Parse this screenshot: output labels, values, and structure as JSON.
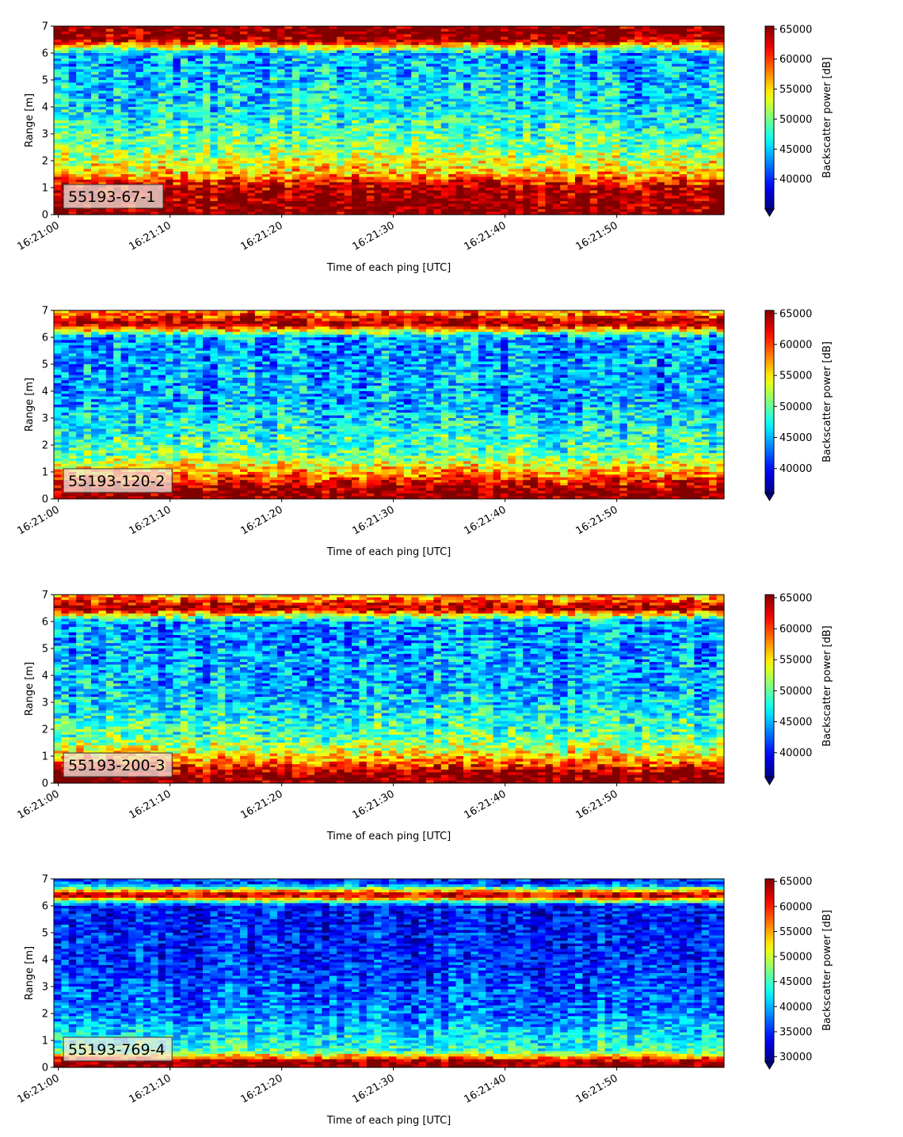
{
  "chart_data": [
    {
      "type": "heatmap",
      "label": "55193-67-1",
      "xlabel": "Time of each ping [UTC]",
      "ylabel": "Range [m]",
      "colorbar_label": "Backscatter power [dB]",
      "xlim": [
        "16:20:59.6",
        "16:21:59.6"
      ],
      "ylim": [
        0,
        7
      ],
      "x_ticks": [
        "16:21:00",
        "16:21:10",
        "16:21:20",
        "16:21:30",
        "16:21:40",
        "16:21:50"
      ],
      "y_ticks": [
        0,
        1,
        2,
        3,
        4,
        5,
        6,
        7
      ],
      "colorbar_range": [
        35000,
        65500
      ],
      "colorbar_ticks": [
        40000,
        45000,
        50000,
        55000,
        60000,
        65000
      ],
      "colorbar_extend": "min",
      "colormap": "jet",
      "profile_approx": [
        {
          "range_m": 0.2,
          "level": 65500
        },
        {
          "range_m": 1.0,
          "level": 64000
        },
        {
          "range_m": 1.6,
          "level": 55000
        },
        {
          "range_m": 2.5,
          "level": 50000
        },
        {
          "range_m": 4.0,
          "level": 46000
        },
        {
          "range_m": 6.0,
          "level": 44000
        },
        {
          "range_m": 6.5,
          "level": 65500
        }
      ]
    },
    {
      "type": "heatmap",
      "label": "55193-120-2",
      "xlabel": "Time of each ping [UTC]",
      "ylabel": "Range [m]",
      "colorbar_label": "Backscatter power [dB]",
      "xlim": [
        "16:20:59.6",
        "16:21:59.6"
      ],
      "ylim": [
        0,
        7
      ],
      "x_ticks": [
        "16:21:00",
        "16:21:10",
        "16:21:20",
        "16:21:30",
        "16:21:40",
        "16:21:50"
      ],
      "y_ticks": [
        0,
        1,
        2,
        3,
        4,
        5,
        6,
        7
      ],
      "colorbar_range": [
        36000,
        65500
      ],
      "colorbar_ticks": [
        40000,
        45000,
        50000,
        55000,
        60000,
        65000
      ],
      "colorbar_extend": "min",
      "colormap": "jet",
      "profile_approx": [
        {
          "range_m": 0.3,
          "level": 65500
        },
        {
          "range_m": 0.9,
          "level": 58000
        },
        {
          "range_m": 1.6,
          "level": 50000
        },
        {
          "range_m": 3.5,
          "level": 45000
        },
        {
          "range_m": 6.0,
          "level": 44000
        },
        {
          "range_m": 6.5,
          "level": 65500
        },
        {
          "range_m": 6.9,
          "level": 58000
        }
      ]
    },
    {
      "type": "heatmap",
      "label": "55193-200-3",
      "xlabel": "Time of each ping [UTC]",
      "ylabel": "Range [m]",
      "colorbar_label": "Backscatter power [dB]",
      "xlim": [
        "16:20:59.6",
        "16:21:59.6"
      ],
      "ylim": [
        0,
        7
      ],
      "x_ticks": [
        "16:21:00",
        "16:21:10",
        "16:21:20",
        "16:21:30",
        "16:21:40",
        "16:21:50"
      ],
      "y_ticks": [
        0,
        1,
        2,
        3,
        4,
        5,
        6,
        7
      ],
      "colorbar_range": [
        36000,
        65500
      ],
      "colorbar_ticks": [
        40000,
        45000,
        50000,
        55000,
        60000,
        65000
      ],
      "colorbar_extend": "min",
      "colormap": "jet",
      "profile_approx": [
        {
          "range_m": 0.3,
          "level": 65500
        },
        {
          "range_m": 0.9,
          "level": 57000
        },
        {
          "range_m": 1.6,
          "level": 50000
        },
        {
          "range_m": 3.5,
          "level": 45000
        },
        {
          "range_m": 6.0,
          "level": 44000
        },
        {
          "range_m": 6.5,
          "level": 65500
        },
        {
          "range_m": 6.9,
          "level": 57000
        }
      ]
    },
    {
      "type": "heatmap",
      "label": "55193-769-4",
      "xlabel": "Time of each ping [UTC]",
      "ylabel": "Range [m]",
      "colorbar_label": "Backscatter power [dB]",
      "xlim": [
        "16:20:59.6",
        "16:21:59.6"
      ],
      "ylim": [
        0,
        7
      ],
      "x_ticks": [
        "16:21:00",
        "16:21:10",
        "16:21:20",
        "16:21:30",
        "16:21:40",
        "16:21:50"
      ],
      "y_ticks": [
        0,
        1,
        2,
        3,
        4,
        5,
        6,
        7
      ],
      "colorbar_range": [
        29000,
        65500
      ],
      "colorbar_ticks": [
        30000,
        35000,
        40000,
        45000,
        50000,
        55000,
        60000,
        65000
      ],
      "colorbar_extend": "min",
      "colormap": "jet",
      "profile_approx": [
        {
          "range_m": 0.2,
          "level": 65500
        },
        {
          "range_m": 0.6,
          "level": 45000
        },
        {
          "range_m": 2.0,
          "level": 38000
        },
        {
          "range_m": 4.0,
          "level": 35000
        },
        {
          "range_m": 6.0,
          "level": 34000
        },
        {
          "range_m": 6.4,
          "level": 65500
        },
        {
          "range_m": 6.8,
          "level": 36000
        }
      ]
    }
  ]
}
